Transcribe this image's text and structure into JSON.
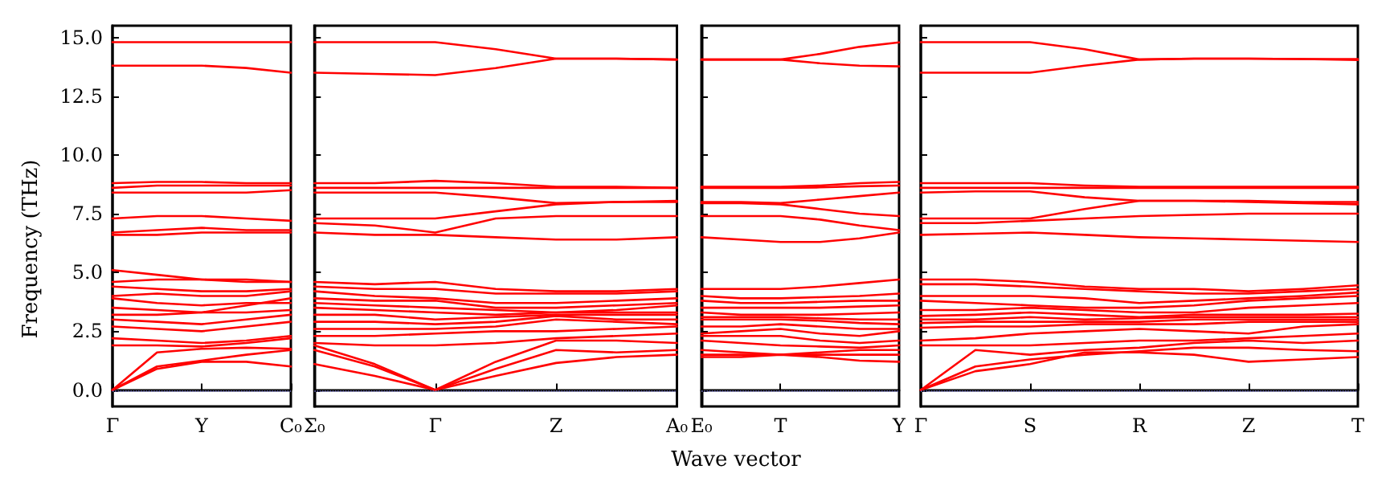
{
  "chart_data": [
    {
      "type": "line",
      "ylabel": "Frequency (THz)",
      "marker": "none",
      "line_style": "solid",
      "categories": [
        "Γ",
        null,
        "Y",
        null,
        "C₀"
      ],
      "ylim": [
        -0.7,
        15.5
      ],
      "yticks": [
        {
          "value": 0,
          "label": "0.0"
        },
        2.5,
        {
          "value": 5,
          "label": "5.0"
        },
        7.5,
        {
          "value": 10,
          "label": "10.0"
        },
        12.5,
        {
          "value": 15,
          "label": "15.0"
        }
      ],
      "ref_lines": [
        {
          "axis": "y",
          "value": 0,
          "label": null,
          "color": "#7777cc",
          "line_style": "dotted"
        }
      ],
      "series": [
        {
          "color": "#ff0000",
          "values": [
            0,
            0.9,
            1.2,
            1.2,
            1.0
          ]
        },
        {
          "color": "#ff0000",
          "values": [
            0,
            1.0,
            1.25,
            1.5,
            1.7
          ]
        },
        {
          "color": "#ff0000",
          "values": [
            0,
            1.6,
            1.75,
            1.8,
            1.75
          ]
        },
        {
          "color": "#ff0000",
          "values": [
            1.9,
            1.9,
            1.85,
            2.0,
            2.2
          ]
        },
        {
          "color": "#ff0000",
          "values": [
            2.2,
            2.1,
            2.0,
            2.1,
            2.3
          ]
        },
        {
          "color": "#ff0000",
          "values": [
            2.7,
            2.6,
            2.5,
            2.7,
            2.9
          ]
        },
        {
          "color": "#ff0000",
          "values": [
            3.0,
            2.9,
            2.8,
            3.0,
            3.2
          ]
        },
        {
          "color": "#ff0000",
          "values": [
            3.2,
            3.2,
            3.3,
            3.3,
            3.4
          ]
        },
        {
          "color": "#ff0000",
          "values": [
            3.5,
            3.4,
            3.3,
            3.6,
            3.9
          ]
        },
        {
          "color": "#ff0000",
          "values": [
            3.9,
            3.7,
            3.6,
            3.7,
            3.7
          ]
        },
        {
          "color": "#ff0000",
          "values": [
            4.0,
            4.1,
            4.0,
            4.0,
            4.2
          ]
        },
        {
          "color": "#ff0000",
          "values": [
            4.4,
            4.3,
            4.2,
            4.2,
            4.3
          ]
        },
        {
          "color": "#ff0000",
          "values": [
            4.6,
            4.7,
            4.7,
            4.6,
            4.6
          ]
        },
        {
          "color": "#ff0000",
          "values": [
            5.1,
            4.9,
            4.7,
            4.7,
            4.6
          ]
        },
        {
          "color": "#ff0000",
          "values": [
            6.6,
            6.6,
            6.7,
            6.7,
            6.7
          ]
        },
        {
          "color": "#ff0000",
          "values": [
            6.7,
            6.8,
            6.9,
            6.8,
            6.8
          ]
        },
        {
          "color": "#ff0000",
          "values": [
            7.3,
            7.4,
            7.4,
            7.3,
            7.2
          ]
        },
        {
          "color": "#ff0000",
          "values": [
            8.4,
            8.4,
            8.4,
            8.4,
            8.5
          ]
        },
        {
          "color": "#ff0000",
          "values": [
            8.6,
            8.7,
            8.7,
            8.7,
            8.7
          ]
        },
        {
          "color": "#ff0000",
          "values": [
            8.8,
            8.85,
            8.85,
            8.8,
            8.8
          ]
        },
        {
          "color": "#ff0000",
          "values": [
            13.8,
            13.8,
            13.8,
            13.7,
            13.5
          ]
        },
        {
          "color": "#ff0000",
          "values": [
            14.8,
            14.8,
            14.8,
            14.8,
            14.8
          ]
        }
      ]
    },
    {
      "type": "line",
      "marker": "none",
      "line_style": "solid",
      "tick_labels": "x",
      "categories": [
        "Σ₀",
        null,
        "Γ",
        null,
        "Z",
        null,
        "A₀"
      ],
      "ylim": [
        -0.7,
        15.5
      ],
      "yticks": [
        0,
        2.5,
        5,
        7.5,
        10,
        12.5,
        15
      ],
      "ref_lines": [
        {
          "axis": "y",
          "value": 0,
          "label": null,
          "color": "#7777cc",
          "line_style": "dotted"
        }
      ],
      "series": [
        {
          "color": "#ff0000",
          "values": [
            1.1,
            0.6,
            0,
            0.6,
            1.15,
            1.4,
            1.5
          ]
        },
        {
          "color": "#ff0000",
          "values": [
            1.7,
            1.0,
            0,
            0.9,
            1.7,
            1.6,
            1.7
          ]
        },
        {
          "color": "#ff0000",
          "values": [
            1.9,
            1.1,
            0,
            1.2,
            2.1,
            2.1,
            2.0
          ]
        },
        {
          "color": "#ff0000",
          "values": [
            2.0,
            1.9,
            1.9,
            2.0,
            2.2,
            2.3,
            2.4
          ]
        },
        {
          "color": "#ff0000",
          "values": [
            2.3,
            2.3,
            2.4,
            2.5,
            2.5,
            2.6,
            2.7
          ]
        },
        {
          "color": "#ff0000",
          "values": [
            2.6,
            2.6,
            2.6,
            2.7,
            3.0,
            2.9,
            2.8
          ]
        },
        {
          "color": "#ff0000",
          "values": [
            2.9,
            2.9,
            2.8,
            2.9,
            3.15,
            3.0,
            3.0
          ]
        },
        {
          "color": "#ff0000",
          "values": [
            3.2,
            3.2,
            3.0,
            3.1,
            3.2,
            3.2,
            3.2
          ]
        },
        {
          "color": "#ff0000",
          "values": [
            3.5,
            3.4,
            3.3,
            3.2,
            3.3,
            3.3,
            3.3
          ]
        },
        {
          "color": "#ff0000",
          "values": [
            3.7,
            3.6,
            3.5,
            3.4,
            3.3,
            3.4,
            3.6
          ]
        },
        {
          "color": "#ff0000",
          "values": [
            3.9,
            3.8,
            3.8,
            3.5,
            3.5,
            3.6,
            3.7
          ]
        },
        {
          "color": "#ff0000",
          "values": [
            4.2,
            4.0,
            3.9,
            3.7,
            3.7,
            3.8,
            3.9
          ]
        },
        {
          "color": "#ff0000",
          "values": [
            4.4,
            4.3,
            4.3,
            4.1,
            4.1,
            4.1,
            4.2
          ]
        },
        {
          "color": "#ff0000",
          "values": [
            4.6,
            4.5,
            4.6,
            4.3,
            4.2,
            4.2,
            4.3
          ]
        },
        {
          "color": "#ff0000",
          "values": [
            6.7,
            6.6,
            6.6,
            6.5,
            6.4,
            6.4,
            6.5
          ]
        },
        {
          "color": "#ff0000",
          "values": [
            7.1,
            7.0,
            6.7,
            7.3,
            7.4,
            7.4,
            7.4
          ]
        },
        {
          "color": "#ff0000",
          "values": [
            7.3,
            7.3,
            7.3,
            7.6,
            7.9,
            8.0,
            8.0
          ]
        },
        {
          "color": "#ff0000",
          "values": [
            8.4,
            8.4,
            8.4,
            8.2,
            7.95,
            8.0,
            8.05
          ]
        },
        {
          "color": "#ff0000",
          "values": [
            8.6,
            8.6,
            8.6,
            8.6,
            8.6,
            8.6,
            8.6
          ]
        },
        {
          "color": "#ff0000",
          "values": [
            8.8,
            8.8,
            8.9,
            8.8,
            8.65,
            8.65,
            8.6
          ]
        },
        {
          "color": "#ff0000",
          "values": [
            13.5,
            13.45,
            13.4,
            13.7,
            14.1,
            14.1,
            14.06
          ]
        },
        {
          "color": "#ff0000",
          "values": [
            14.8,
            14.8,
            14.8,
            14.5,
            14.1,
            14.1,
            14.06
          ]
        }
      ]
    },
    {
      "type": "line",
      "xlabel": "Wave vector",
      "marker": "none",
      "line_style": "solid",
      "tick_labels": "x",
      "categories": [
        "E₀",
        null,
        "T",
        null,
        null,
        "Y"
      ],
      "ylim": [
        -0.7,
        15.5
      ],
      "yticks": [
        0,
        2.5,
        5,
        7.5,
        10,
        12.5,
        15
      ],
      "ref_lines": [
        {
          "axis": "y",
          "value": 0,
          "label": null,
          "color": "#7777cc",
          "line_style": "dotted"
        }
      ],
      "series": [
        {
          "color": "#ff0000",
          "values": [
            1.4,
            1.4,
            1.5,
            1.4,
            1.25,
            1.2
          ]
        },
        {
          "color": "#ff0000",
          "values": [
            1.5,
            1.5,
            1.5,
            1.5,
            1.5,
            1.5
          ]
        },
        {
          "color": "#ff0000",
          "values": [
            1.7,
            1.6,
            1.5,
            1.6,
            1.7,
            1.7
          ]
        },
        {
          "color": "#ff0000",
          "values": [
            2.1,
            2.0,
            1.9,
            1.85,
            1.8,
            1.9
          ]
        },
        {
          "color": "#ff0000",
          "values": [
            2.3,
            2.3,
            2.3,
            2.1,
            2.0,
            2.1
          ]
        },
        {
          "color": "#ff0000",
          "values": [
            2.4,
            2.5,
            2.6,
            2.4,
            2.3,
            2.5
          ]
        },
        {
          "color": "#ff0000",
          "values": [
            2.7,
            2.7,
            2.8,
            2.7,
            2.6,
            2.6
          ]
        },
        {
          "color": "#ff0000",
          "values": [
            3.0,
            3.0,
            3.0,
            2.95,
            2.85,
            2.8
          ]
        },
        {
          "color": "#ff0000",
          "values": [
            3.1,
            3.1,
            3.1,
            3.05,
            3.0,
            3.0
          ]
        },
        {
          "color": "#ff0000",
          "values": [
            3.3,
            3.2,
            3.2,
            3.2,
            3.25,
            3.3
          ]
        },
        {
          "color": "#ff0000",
          "values": [
            3.5,
            3.5,
            3.5,
            3.5,
            3.55,
            3.6
          ]
        },
        {
          "color": "#ff0000",
          "values": [
            3.8,
            3.7,
            3.7,
            3.75,
            3.8,
            3.8
          ]
        },
        {
          "color": "#ff0000",
          "values": [
            4.0,
            3.9,
            3.9,
            3.95,
            4.0,
            4.1
          ]
        },
        {
          "color": "#ff0000",
          "values": [
            4.3,
            4.3,
            4.3,
            4.4,
            4.55,
            4.7
          ]
        },
        {
          "color": "#ff0000",
          "values": [
            6.5,
            6.4,
            6.3,
            6.3,
            6.45,
            6.7
          ]
        },
        {
          "color": "#ff0000",
          "values": [
            7.4,
            7.4,
            7.4,
            7.25,
            7.0,
            6.8
          ]
        },
        {
          "color": "#ff0000",
          "values": [
            7.95,
            7.95,
            7.9,
            7.7,
            7.5,
            7.4
          ]
        },
        {
          "color": "#ff0000",
          "values": [
            8.0,
            8.0,
            7.95,
            8.1,
            8.25,
            8.4
          ]
        },
        {
          "color": "#ff0000",
          "values": [
            8.6,
            8.6,
            8.6,
            8.62,
            8.67,
            8.7
          ]
        },
        {
          "color": "#ff0000",
          "values": [
            8.65,
            8.65,
            8.65,
            8.7,
            8.8,
            8.85
          ]
        },
        {
          "color": "#ff0000",
          "values": [
            14.06,
            14.06,
            14.06,
            13.9,
            13.8,
            13.77
          ]
        },
        {
          "color": "#ff0000",
          "values": [
            14.06,
            14.06,
            14.06,
            14.3,
            14.6,
            14.79
          ]
        }
      ]
    },
    {
      "type": "line",
      "marker": "none",
      "line_style": "solid",
      "tick_labels": "x",
      "categories": [
        "Γ",
        null,
        "S",
        null,
        "R",
        null,
        "Z",
        null,
        "T"
      ],
      "ylim": [
        -0.7,
        15.5
      ],
      "yticks": [
        0,
        2.5,
        5,
        7.5,
        10,
        12.5,
        15
      ],
      "ref_lines": [
        {
          "axis": "y",
          "value": 0,
          "label": null,
          "color": "#7777cc",
          "line_style": "dotted"
        }
      ],
      "series": [
        {
          "color": "#ff0000",
          "values": [
            0,
            0.8,
            1.1,
            1.6,
            1.6,
            1.5,
            1.2,
            1.3,
            1.4
          ]
        },
        {
          "color": "#ff0000",
          "values": [
            0,
            1.0,
            1.3,
            1.5,
            1.65,
            1.8,
            1.8,
            1.7,
            1.65
          ]
        },
        {
          "color": "#ff0000",
          "values": [
            0,
            1.7,
            1.5,
            1.7,
            1.8,
            2.0,
            2.1,
            2.0,
            2.1
          ]
        },
        {
          "color": "#ff0000",
          "values": [
            1.9,
            1.9,
            1.9,
            2.0,
            2.1,
            2.1,
            2.2,
            2.3,
            2.4
          ]
        },
        {
          "color": "#ff0000",
          "values": [
            2.1,
            2.2,
            2.4,
            2.5,
            2.6,
            2.5,
            2.4,
            2.7,
            2.8
          ]
        },
        {
          "color": "#ff0000",
          "values": [
            2.65,
            2.7,
            2.7,
            2.8,
            2.8,
            2.8,
            2.9,
            2.9,
            2.9
          ]
        },
        {
          "color": "#ff0000",
          "values": [
            2.85,
            2.9,
            2.9,
            2.9,
            2.9,
            3.0,
            3.0,
            3.0,
            3.0
          ]
        },
        {
          "color": "#ff0000",
          "values": [
            3.0,
            3.0,
            3.1,
            3.0,
            3.05,
            3.1,
            3.1,
            3.1,
            3.1
          ]
        },
        {
          "color": "#ff0000",
          "values": [
            3.15,
            3.2,
            3.3,
            3.2,
            3.1,
            3.2,
            3.2,
            3.2,
            3.25
          ]
        },
        {
          "color": "#ff0000",
          "values": [
            3.4,
            3.4,
            3.5,
            3.4,
            3.3,
            3.3,
            3.5,
            3.6,
            3.7
          ]
        },
        {
          "color": "#ff0000",
          "values": [
            3.8,
            3.7,
            3.6,
            3.5,
            3.5,
            3.6,
            3.8,
            3.9,
            4.0
          ]
        },
        {
          "color": "#ff0000",
          "values": [
            4.0,
            4.0,
            4.0,
            3.9,
            3.7,
            3.8,
            3.9,
            4.0,
            4.15
          ]
        },
        {
          "color": "#ff0000",
          "values": [
            4.5,
            4.5,
            4.4,
            4.3,
            4.2,
            4.1,
            4.1,
            4.2,
            4.3
          ]
        },
        {
          "color": "#ff0000",
          "values": [
            4.7,
            4.7,
            4.6,
            4.4,
            4.3,
            4.3,
            4.2,
            4.3,
            4.45
          ]
        },
        {
          "color": "#ff0000",
          "values": [
            6.6,
            6.65,
            6.7,
            6.6,
            6.5,
            6.45,
            6.4,
            6.35,
            6.3
          ]
        },
        {
          "color": "#ff0000",
          "values": [
            7.1,
            7.1,
            7.2,
            7.3,
            7.4,
            7.45,
            7.5,
            7.5,
            7.5
          ]
        },
        {
          "color": "#ff0000",
          "values": [
            7.3,
            7.3,
            7.3,
            7.7,
            8.05,
            8.05,
            8.0,
            7.95,
            7.9
          ]
        },
        {
          "color": "#ff0000",
          "values": [
            8.4,
            8.45,
            8.45,
            8.2,
            8.05,
            8.05,
            8.05,
            8.0,
            8.0
          ]
        },
        {
          "color": "#ff0000",
          "values": [
            8.6,
            8.6,
            8.6,
            8.6,
            8.6,
            8.6,
            8.6,
            8.6,
            8.6
          ]
        },
        {
          "color": "#ff0000",
          "values": [
            8.8,
            8.8,
            8.8,
            8.7,
            8.65,
            8.65,
            8.65,
            8.65,
            8.65
          ]
        },
        {
          "color": "#ff0000",
          "values": [
            13.5,
            13.5,
            13.5,
            13.8,
            14.06,
            14.1,
            14.1,
            14.08,
            14.04
          ]
        },
        {
          "color": "#ff0000",
          "values": [
            14.8,
            14.8,
            14.8,
            14.5,
            14.06,
            14.1,
            14.1,
            14.08,
            14.08
          ]
        }
      ]
    }
  ]
}
